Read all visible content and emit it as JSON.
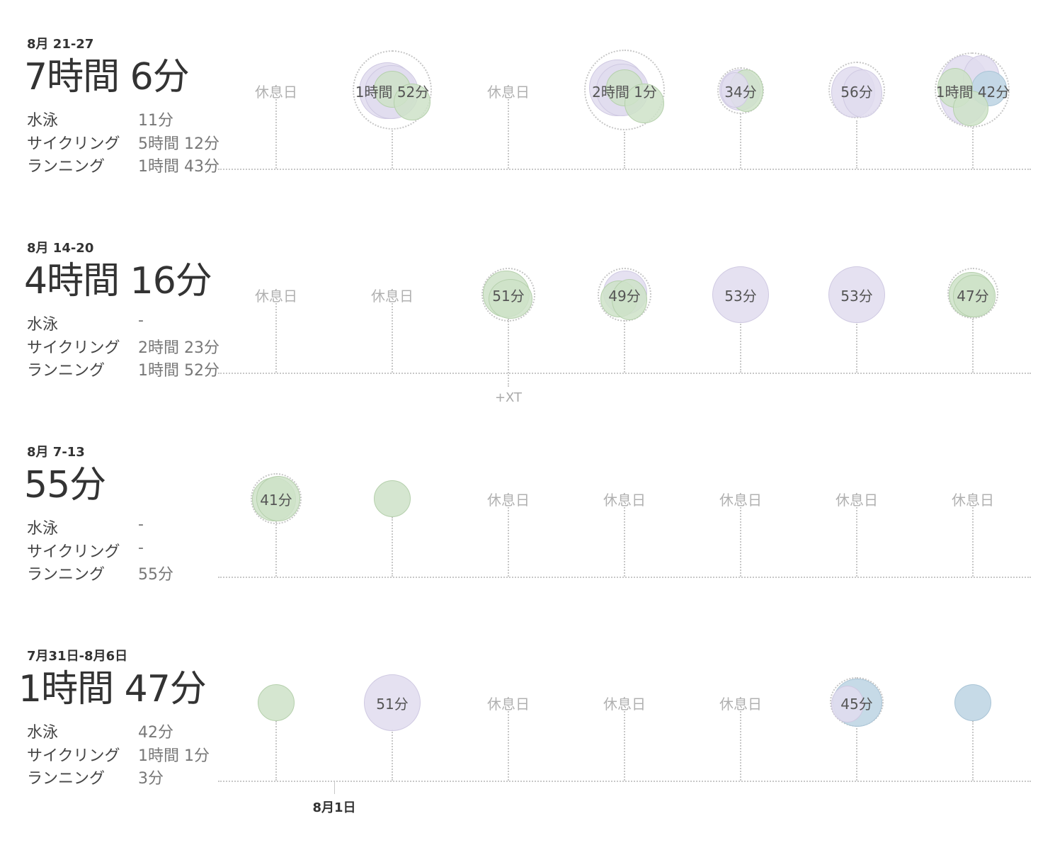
{
  "colors": {
    "cycling": "#e0dcee",
    "running": "#cee2c8",
    "swimming": "#c0d6e4",
    "rest_text": "#b0b0b0",
    "grid": "#c8c8c8"
  },
  "sport_labels": {
    "swim": "水泳",
    "cycle": "サイクリング",
    "run": "ランニング"
  },
  "rest_label": "休息日",
  "xt_label": "+XT",
  "month_marker": "8月1日",
  "weeks": [
    {
      "range": "8月 21-27",
      "total": "7時間 6分",
      "swim": "11分",
      "cycle": "5時間 12分",
      "run": "1時間 43分",
      "days": [
        {
          "rest": true
        },
        {
          "label": "1時間 52分"
        },
        {
          "rest": true
        },
        {
          "label": "2時間 1分"
        },
        {
          "label": "34分"
        },
        {
          "label": "56分"
        },
        {
          "label": "1時間 42分"
        }
      ]
    },
    {
      "range": "8月 14-20",
      "total": "4時間 16分",
      "swim": "-",
      "cycle": "2時間 23分",
      "run": "1時間 52分",
      "days": [
        {
          "rest": true
        },
        {
          "rest": true
        },
        {
          "label": "51分"
        },
        {
          "label": "49分"
        },
        {
          "label": "53分"
        },
        {
          "label": "53分"
        },
        {
          "label": "47分"
        }
      ]
    },
    {
      "range": "8月 7-13",
      "total": "55分",
      "swim": "-",
      "cycle": "-",
      "run": "55分",
      "days": [
        {
          "label": "41分"
        },
        {
          "label": ""
        },
        {
          "rest": true
        },
        {
          "rest": true
        },
        {
          "rest": true
        },
        {
          "rest": true
        },
        {
          "rest": true
        }
      ]
    },
    {
      "range": "7月31日-8月6日",
      "total": "1時間 47分",
      "swim": "42分",
      "cycle": "1時間 1分",
      "run": "3分",
      "days": [
        {
          "label": ""
        },
        {
          "label": "51分"
        },
        {
          "rest": true
        },
        {
          "rest": true
        },
        {
          "rest": true
        },
        {
          "label": "45分"
        },
        {
          "label": ""
        }
      ]
    }
  ]
}
